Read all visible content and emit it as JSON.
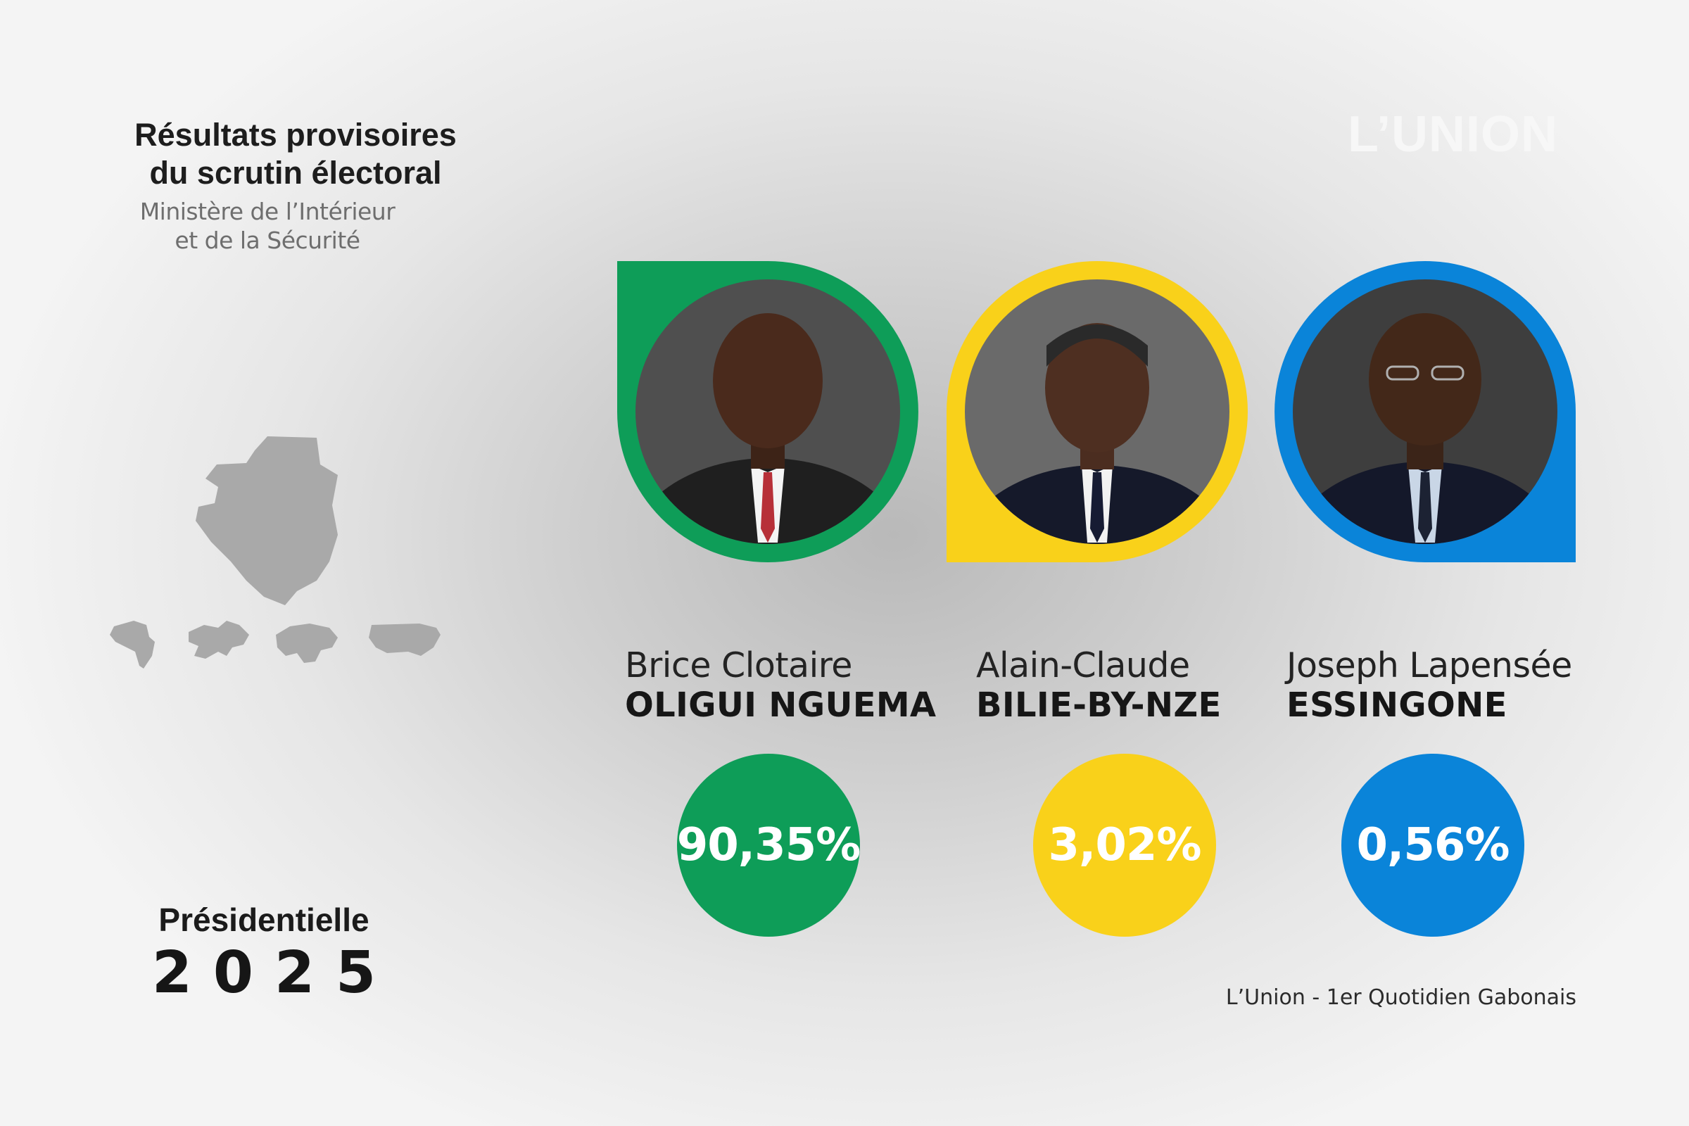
{
  "header": {
    "title_line1": "Résultats provisoires",
    "title_line2": "du scrutin électoral",
    "source_line1": "Ministère de l’Intérieur",
    "source_line2": "et de la Sécurité"
  },
  "brand": {
    "logo_text": "L’UNION"
  },
  "candidates": [
    {
      "first_name": "Brice Clotaire",
      "last_name": "OLIGUI NGUEMA",
      "percentage": "90,35%",
      "color": "#0e9d58"
    },
    {
      "first_name": "Alain-Claude",
      "last_name": "BILIE-BY-NZE",
      "percentage": "3,02%",
      "color": "#f9d11a"
    },
    {
      "first_name": "Joseph Lapensée",
      "last_name": "ESSINGONE",
      "percentage": "0,56%",
      "color": "#0a84d9"
    }
  ],
  "election": {
    "label": "Présidentielle",
    "year": "2025"
  },
  "footer": {
    "text": "L’Union - 1er Quotidien Gabonais"
  },
  "colors": {
    "map_fill": "#a9a9a9",
    "background": "#d6d6d6"
  },
  "icons": [
    "gabon-map-icon",
    "africa-map-icon",
    "europe-map-icon",
    "asia-map-icon",
    "usa-map-icon"
  ]
}
